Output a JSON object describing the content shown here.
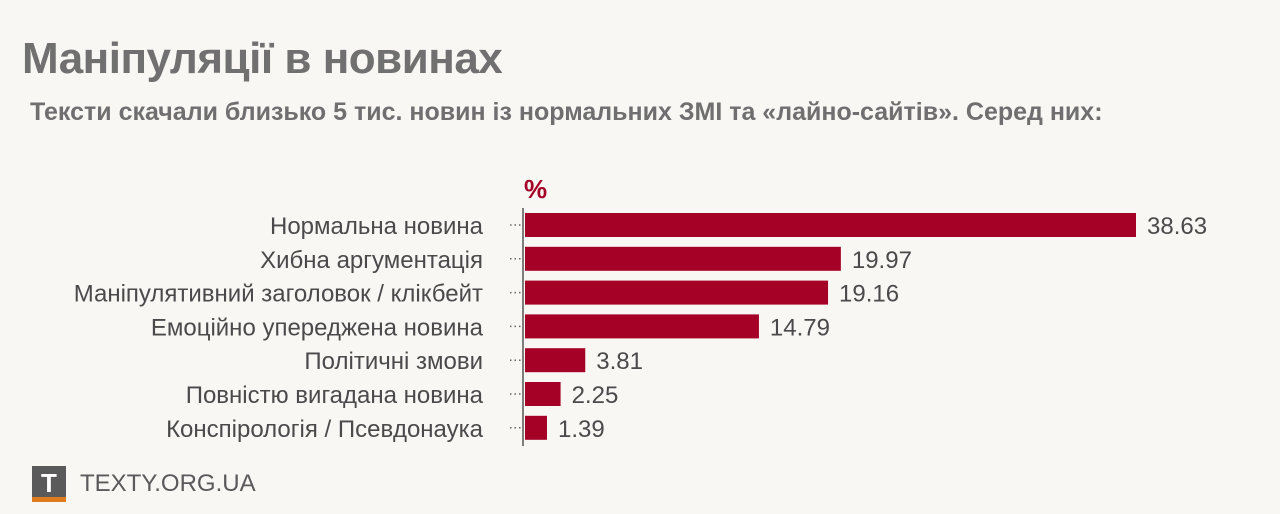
{
  "header": {
    "title": "Маніпуляції в новинах",
    "subtitle": "Тексти скачали близько 5 тис. новин із нормальних ЗМІ та «лайно-сайтів». Серед них:"
  },
  "chart_data": {
    "type": "bar",
    "orientation": "horizontal",
    "unit_label": "%",
    "categories": [
      "Нормальна новина",
      "Хибна аргументація",
      "Маніпулятивний заголовок / клікбейт",
      "Емоційно упереджена новина",
      "Політичні змови",
      "Повністю вигадана новина",
      "Конспірологія / Псевдонаука"
    ],
    "values": [
      38.63,
      19.97,
      19.16,
      14.79,
      3.81,
      2.25,
      1.39
    ],
    "value_labels": [
      "38.63",
      "19.97",
      "19.16",
      "14.79",
      "3.81",
      "2.25",
      "1.39"
    ],
    "xlim": [
      0,
      40
    ],
    "grid": false,
    "bar_color": "#a50026"
  },
  "footer": {
    "logo_letter": "T",
    "site": "TEXTY.ORG.UA"
  },
  "colors": {
    "title": "#707070",
    "bar": "#a50026",
    "logo_bg": "#5a5a5a",
    "logo_accent": "#e07b1f"
  }
}
